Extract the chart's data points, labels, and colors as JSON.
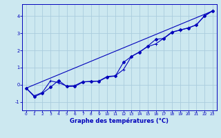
{
  "title": "Graphe des températures (°C)",
  "bg_color": "#cce8f0",
  "grid_color": "#aaccdd",
  "line_color": "#0000bb",
  "xlim": [
    -0.5,
    23.5
  ],
  "ylim": [
    -1.5,
    4.7
  ],
  "yticks": [
    -1,
    0,
    1,
    2,
    3,
    4
  ],
  "xticks": [
    0,
    1,
    2,
    3,
    4,
    5,
    6,
    7,
    8,
    9,
    10,
    11,
    12,
    13,
    14,
    15,
    16,
    17,
    18,
    19,
    20,
    21,
    22,
    23
  ],
  "series1_x": [
    0,
    1,
    2,
    3,
    4,
    5,
    6,
    7,
    8,
    9,
    10,
    11,
    12,
    13,
    14,
    15,
    16,
    17,
    18,
    19,
    20,
    21,
    22,
    23
  ],
  "series1_y": [
    -0.2,
    -0.7,
    -0.5,
    -0.15,
    0.25,
    -0.1,
    -0.1,
    0.15,
    0.2,
    0.2,
    0.45,
    0.5,
    1.3,
    1.65,
    1.9,
    2.25,
    2.65,
    2.7,
    3.05,
    3.2,
    3.3,
    3.5,
    4.0,
    4.3
  ],
  "series2_x": [
    0,
    1,
    2,
    3,
    4,
    5,
    6,
    7,
    8,
    9,
    10,
    11,
    12,
    13,
    14,
    15,
    16,
    17,
    18,
    19,
    20,
    21,
    22,
    23
  ],
  "series2_y": [
    -0.2,
    -0.65,
    -0.45,
    0.22,
    0.12,
    -0.08,
    -0.05,
    0.18,
    0.18,
    0.22,
    0.48,
    0.52,
    0.88,
    1.65,
    1.92,
    2.22,
    2.38,
    2.72,
    3.08,
    3.18,
    3.32,
    3.48,
    4.02,
    4.32
  ],
  "series3_x": [
    0,
    23
  ],
  "series3_y": [
    -0.2,
    4.3
  ]
}
